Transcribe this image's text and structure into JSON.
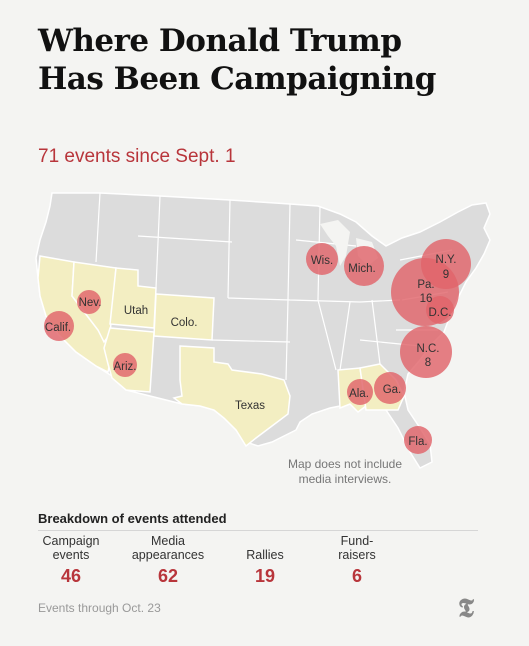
{
  "headline": {
    "line1": "Where Donald Trump",
    "line2": "Has Been Campaigning"
  },
  "subtitle": "71 events since Sept. 1",
  "map": {
    "note_line1": "Map does not include",
    "note_line2": "media interviews.",
    "colors": {
      "state_fill": "#dcdcdc",
      "state_stroke": "#ffffff",
      "visited_fill": "#f3eec2",
      "bubble_fill": "#e0646a",
      "label_color": "#333333"
    },
    "visited_states": [
      "California",
      "Nevada",
      "Utah",
      "Colorado",
      "Arizona",
      "Texas",
      "Alabama",
      "Georgia"
    ],
    "labels": [
      {
        "id": "ca",
        "text": "Calif."
      },
      {
        "id": "nv",
        "text": "Nev."
      },
      {
        "id": "ut",
        "text": "Utah"
      },
      {
        "id": "co",
        "text": "Colo."
      },
      {
        "id": "az",
        "text": "Ariz."
      },
      {
        "id": "tx",
        "text": "Texas"
      },
      {
        "id": "wi",
        "text": "Wis."
      },
      {
        "id": "mi",
        "text": "Mich."
      },
      {
        "id": "ny",
        "text": "N.Y."
      },
      {
        "id": "ny_count",
        "text": "9"
      },
      {
        "id": "pa",
        "text": "Pa."
      },
      {
        "id": "pa_count",
        "text": "16"
      },
      {
        "id": "dc",
        "text": "D.C."
      },
      {
        "id": "nc",
        "text": "N.C."
      },
      {
        "id": "nc_count",
        "text": "8"
      },
      {
        "id": "al",
        "text": "Ala."
      },
      {
        "id": "ga",
        "text": "Ga."
      },
      {
        "id": "fl",
        "text": "Fla."
      }
    ]
  },
  "breakdown": {
    "title": "Breakdown of events attended",
    "items": [
      {
        "label_line1": "Campaign",
        "label_line2": "events",
        "value": "46"
      },
      {
        "label_line1": "Media",
        "label_line2": "appearances",
        "value": "62"
      },
      {
        "label_line1": "",
        "label_line2": "Rallies",
        "value": "19"
      },
      {
        "label_line1": "Fund-",
        "label_line2": "raisers",
        "value": "6"
      }
    ]
  },
  "footnote": "Events through Oct. 23",
  "logo_icon": "nyt-logo-icon",
  "logo_glyph": "𝕿"
}
